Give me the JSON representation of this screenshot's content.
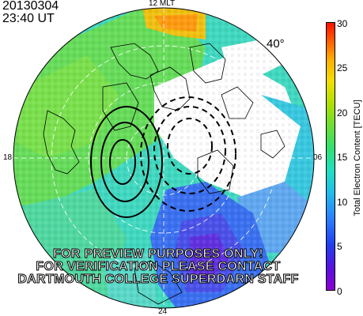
{
  "stamp": {
    "date": "20130304",
    "time": "23:40 UT"
  },
  "map": {
    "mlt_labels": {
      "top": "12 MLT",
      "bottom": "24",
      "left": "18",
      "right": "06"
    },
    "latitude_label": "40°"
  },
  "colorbar": {
    "title": "Total Electron Content [TECU]",
    "ticks": [
      "0",
      "5",
      "10",
      "15",
      "20",
      "25",
      "30"
    ],
    "range": [
      0,
      30
    ]
  },
  "watermark": {
    "line1": "FOR PREVIEW PURPOSES ONLY!",
    "line2": "FOR VERIFICATION PLEASE CONTACT",
    "line3": "DARTMOUTH COLLEGE SUPERDARN STAFF"
  }
}
